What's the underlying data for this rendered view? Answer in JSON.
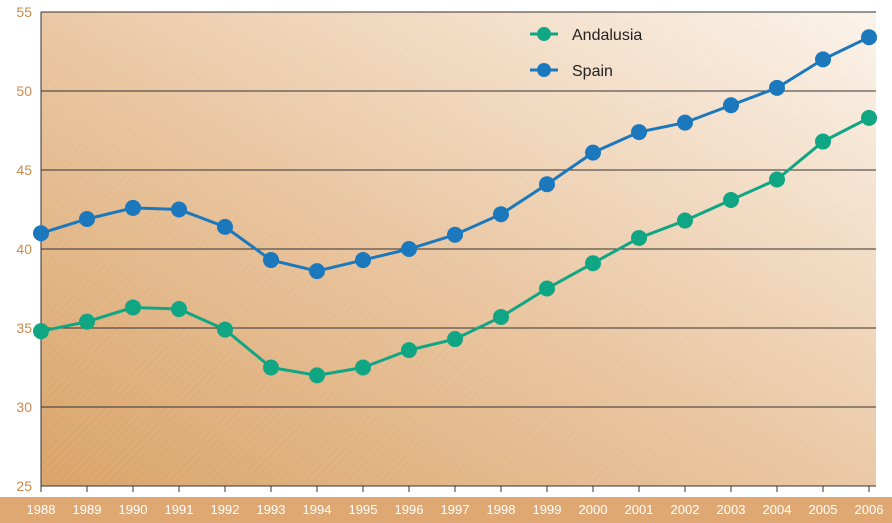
{
  "chart_data": {
    "type": "line",
    "title": "",
    "xlabel": "",
    "ylabel": "",
    "categories": [
      "1988",
      "1989",
      "1990",
      "1991",
      "1992",
      "1993",
      "1994",
      "1995",
      "1996",
      "1997",
      "1998",
      "1999",
      "2000",
      "2001",
      "2002",
      "2003",
      "2004",
      "2005",
      "2006"
    ],
    "ylim": [
      25,
      55
    ],
    "yticks": [
      25,
      30,
      35,
      40,
      45,
      50,
      55
    ],
    "grid": true,
    "legend_position": "top-right",
    "series": [
      {
        "name": "Andalusia",
        "color": "#10a683",
        "values": [
          34.8,
          35.4,
          36.3,
          36.2,
          34.9,
          32.5,
          32.0,
          32.5,
          33.6,
          34.3,
          35.7,
          37.5,
          39.1,
          40.7,
          41.8,
          43.1,
          44.4,
          46.8,
          48.3
        ]
      },
      {
        "name": "Spain",
        "color": "#1b78bd",
        "values": [
          41.0,
          41.9,
          42.6,
          42.5,
          41.4,
          39.3,
          38.6,
          39.3,
          40.0,
          40.9,
          42.2,
          44.1,
          46.1,
          47.4,
          48.0,
          49.1,
          50.2,
          52.0,
          53.4
        ]
      }
    ]
  }
}
